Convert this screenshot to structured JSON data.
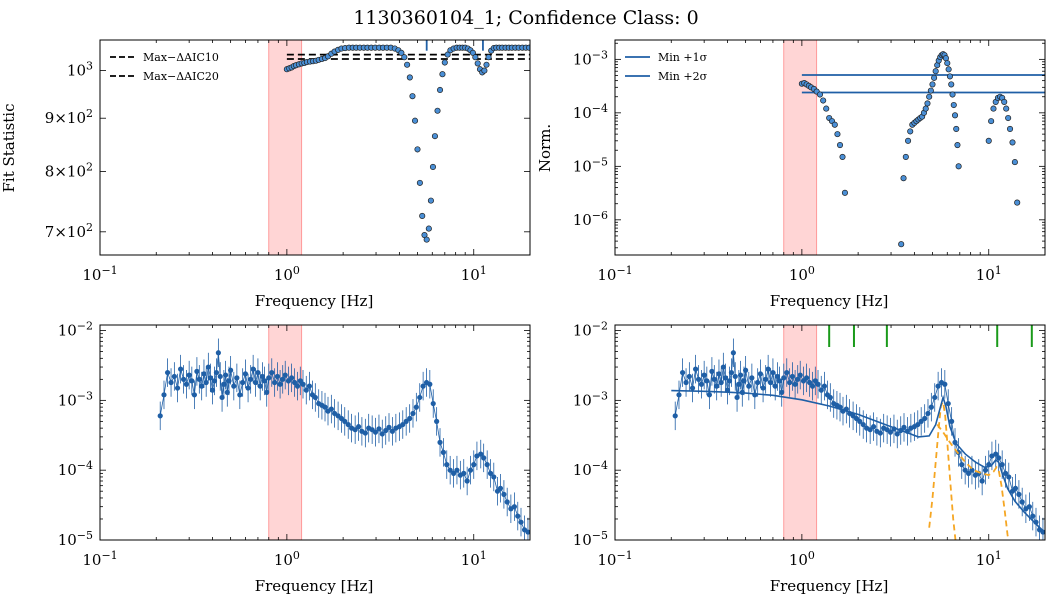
{
  "figure": {
    "suptitle": "1130360104_1; Confidence Class: 0",
    "colors": {
      "series": "#1f5fa6",
      "marker_face": "#4a8fd6",
      "marker_edge": "#222222",
      "band": "#ffb3b3",
      "model": "#1f5fa6",
      "components": "#f5a623",
      "peaks": "#1a9a1a"
    }
  },
  "chart_data": [
    {
      "id": "top-left",
      "type": "scatter",
      "title": "",
      "xlabel": "Frequency [Hz]",
      "ylabel": "Fit Statistic",
      "xscale": "log",
      "yscale": "log",
      "xlim": [
        0.1,
        20
      ],
      "ylim": [
        665,
        1070
      ],
      "xticklabels": [
        "10^-1",
        "10^0",
        "10^1"
      ],
      "yticks": [
        700,
        800,
        900,
        1000
      ],
      "yticklabels": [
        "7x10^2",
        "8x10^2",
        "9x10^2",
        "10^3"
      ],
      "shaded_band_x": [
        0.8,
        1.2
      ],
      "legend": {
        "position": "top-left",
        "entries": [
          "Max−ΔAIC10",
          "Max−ΔAIC20"
        ]
      },
      "hlines": [
        {
          "name": "Max−ΔAIC10",
          "y": 1036,
          "xmin": 1.0,
          "xmax": 20,
          "style": "dashed",
          "color": "#000000"
        },
        {
          "name": "Max−ΔAIC20",
          "y": 1026,
          "xmin": 1.0,
          "xmax": 20,
          "style": "dashed",
          "color": "#000000"
        }
      ],
      "vlines": [
        {
          "x": 5.6,
          "ymin": 1045,
          "ymax": 1070
        },
        {
          "x": 11.2,
          "ymin": 1045,
          "ymax": 1070
        }
      ],
      "points": {
        "x": [
          1.0,
          1.03,
          1.06,
          1.09,
          1.12,
          1.16,
          1.2,
          1.24,
          1.28,
          1.33,
          1.38,
          1.43,
          1.48,
          1.54,
          1.6,
          1.66,
          1.73,
          1.8,
          1.88,
          1.96,
          2.05,
          2.15,
          2.25,
          2.35,
          2.46,
          2.58,
          2.7,
          2.83,
          2.97,
          3.12,
          3.27,
          3.43,
          3.6,
          3.78,
          3.95,
          4.1,
          4.25,
          4.4,
          4.55,
          4.7,
          4.85,
          5.0,
          5.15,
          5.3,
          5.45,
          5.6,
          5.75,
          5.9,
          6.05,
          6.2,
          6.4,
          6.6,
          6.8,
          7.0,
          7.25,
          7.5,
          7.8,
          8.1,
          8.4,
          8.7,
          9.0,
          9.3,
          9.6,
          9.9,
          10.2,
          10.5,
          10.8,
          11.1,
          11.4,
          11.7,
          12.0,
          12.4,
          12.8,
          13.2,
          13.7,
          14.2,
          14.8,
          15.4,
          16.0,
          16.7,
          17.4,
          18.2,
          19.0,
          19.8
        ],
        "y": [
          1003,
          1005,
          1007,
          1010,
          1012,
          1014,
          1016,
          1017,
          1019,
          1020,
          1021,
          1022,
          1024,
          1026,
          1028,
          1032,
          1038,
          1043,
          1047,
          1050,
          1051,
          1052,
          1052,
          1052,
          1052,
          1052,
          1052,
          1052,
          1052,
          1052,
          1052,
          1052,
          1052,
          1050,
          1046,
          1040,
          1030,
          1013,
          985,
          945,
          895,
          840,
          780,
          725,
          695,
          688,
          705,
          750,
          808,
          865,
          915,
          958,
          992,
          1018,
          1036,
          1046,
          1050,
          1052,
          1052,
          1052,
          1052,
          1050,
          1046,
          1040,
          1030,
          1016,
          1003,
          996,
          1000,
          1013,
          1030,
          1045,
          1051,
          1052,
          1052,
          1052,
          1052,
          1052,
          1052,
          1052,
          1052,
          1052,
          1052,
          1052
        ]
      }
    },
    {
      "id": "top-right",
      "type": "scatter",
      "title": "",
      "xlabel": "Frequency [Hz]",
      "ylabel": "Norm.",
      "xscale": "log",
      "yscale": "log",
      "xlim": [
        0.1,
        20
      ],
      "ylim": [
        2.2e-07,
        0.0023
      ],
      "xticklabels": [
        "10^-1",
        "10^0",
        "10^1"
      ],
      "yticks": [
        1e-06,
        1e-05,
        0.0001,
        0.001
      ],
      "yticklabels": [
        "10^-6",
        "10^-5",
        "10^-4",
        "10^-3"
      ],
      "shaded_band_x": [
        0.8,
        1.2
      ],
      "legend": {
        "position": "top-left",
        "entries": [
          "Min +1σ",
          "Min +2σ"
        ]
      },
      "hlines": [
        {
          "name": "Min +1σ",
          "y": 0.00051,
          "xmin": 1.0,
          "xmax": 20,
          "style": "solid",
          "color": "#1f5fa6"
        },
        {
          "name": "Min +2σ",
          "y": 0.00024,
          "xmin": 1.0,
          "xmax": 20,
          "style": "solid",
          "color": "#1f5fa6"
        }
      ],
      "points": {
        "x": [
          1.0,
          1.03,
          1.06,
          1.09,
          1.12,
          1.16,
          1.2,
          1.25,
          1.3,
          1.35,
          1.4,
          1.45,
          1.5,
          1.55,
          1.6,
          1.65,
          1.7,
          3.4,
          3.5,
          3.6,
          3.7,
          3.8,
          3.9,
          4.0,
          4.1,
          4.2,
          4.3,
          4.4,
          4.5,
          4.6,
          4.7,
          4.8,
          4.9,
          5.0,
          5.1,
          5.2,
          5.3,
          5.4,
          5.5,
          5.6,
          5.7,
          5.8,
          5.9,
          6.0,
          6.1,
          6.2,
          6.3,
          6.4,
          6.5,
          6.6,
          6.7,
          6.8,
          6.9,
          10.0,
          10.3,
          10.6,
          10.9,
          11.2,
          11.5,
          11.8,
          12.1,
          12.4,
          12.7,
          13.0,
          13.4,
          13.8,
          14.2
        ],
        "y": [
          0.00035,
          0.00036,
          0.00034,
          0.00032,
          0.0003,
          0.00028,
          0.00025,
          0.00022,
          0.00017,
          0.00012,
          8e-05,
          7e-05,
          6e-05,
          4e-05,
          2.5e-05,
          1.5e-05,
          3.2e-06,
          3.5e-07,
          6e-06,
          1.5e-05,
          3e-05,
          4.5e-05,
          6e-05,
          6.5e-05,
          7e-05,
          7.5e-05,
          8e-05,
          8.5e-05,
          0.0001,
          0.00012,
          0.00015,
          0.0002,
          0.00026,
          0.00034,
          0.00045,
          0.0006,
          0.00078,
          0.00095,
          0.0011,
          0.0012,
          0.00125,
          0.0012,
          0.00105,
          0.00085,
          0.00065,
          0.00048,
          0.00034,
          0.00022,
          0.00014,
          9e-05,
          5e-05,
          2.5e-05,
          1e-05,
          3e-05,
          7e-05,
          0.00012,
          0.00016,
          0.00019,
          0.0002,
          0.00019,
          0.00016,
          0.00012,
          8e-05,
          5e-05,
          2.8e-05,
          1.2e-05,
          2.1e-06
        ]
      }
    },
    {
      "id": "bottom-left",
      "type": "scatter",
      "title": "",
      "xlabel": "Frequency [Hz]",
      "ylabel": "",
      "xscale": "log",
      "yscale": "log",
      "xlim": [
        0.1,
        20
      ],
      "ylim": [
        1e-05,
        0.012
      ],
      "xticklabels": [
        "10^-1",
        "10^0",
        "10^1"
      ],
      "yticks": [
        1e-05,
        0.0001,
        0.001,
        0.01
      ],
      "yticklabels": [
        "10^-5",
        "10^-4",
        "10^-3",
        "10^-2"
      ],
      "shaded_band_x": [
        0.8,
        1.2
      ],
      "series": [
        {
          "name": "",
          "color": "#1f5fa6",
          "x": [
            0.21,
            0.22,
            0.23,
            0.24,
            0.25,
            0.26,
            0.27,
            0.28,
            0.29,
            0.3,
            0.31,
            0.32,
            0.33,
            0.34,
            0.35,
            0.36,
            0.37,
            0.38,
            0.39,
            0.4,
            0.41,
            0.42,
            0.43,
            0.44,
            0.45,
            0.46,
            0.47,
            0.48,
            0.49,
            0.5,
            0.52,
            0.54,
            0.56,
            0.58,
            0.6,
            0.62,
            0.64,
            0.66,
            0.68,
            0.7,
            0.72,
            0.74,
            0.76,
            0.78,
            0.8,
            0.83,
            0.86,
            0.89,
            0.92,
            0.95,
            0.98,
            1.02,
            1.06,
            1.1,
            1.14,
            1.18,
            1.22,
            1.27,
            1.32,
            1.37,
            1.42,
            1.48,
            1.54,
            1.6,
            1.66,
            1.73,
            1.8,
            1.88,
            1.96,
            2.04,
            2.13,
            2.22,
            2.32,
            2.42,
            2.52,
            2.63,
            2.74,
            2.86,
            2.98,
            3.11,
            3.24,
            3.38,
            3.52,
            3.67,
            3.83,
            4.0,
            4.17,
            4.35,
            4.54,
            4.73,
            4.93,
            5.14,
            5.36,
            5.59,
            5.82,
            6.07,
            6.33,
            6.6,
            6.88,
            7.17,
            7.48,
            7.8,
            8.13,
            8.48,
            8.84,
            9.22,
            9.61,
            10.0,
            10.4,
            10.9,
            11.3,
            11.8,
            12.3,
            12.8,
            13.4,
            13.9,
            14.5,
            15.1,
            15.8,
            16.5,
            17.2,
            17.9,
            18.7,
            19.5
          ],
          "y": [
            0.0006,
            0.0012,
            0.0025,
            0.0018,
            0.0022,
            0.0015,
            0.0028,
            0.002,
            0.0017,
            0.0023,
            0.0019,
            0.0012,
            0.0026,
            0.002,
            0.0016,
            0.0024,
            0.0018,
            0.003,
            0.0021,
            0.0014,
            0.0019,
            0.0025,
            0.0048,
            0.0022,
            0.0011,
            0.0017,
            0.0023,
            0.0013,
            0.0019,
            0.0027,
            0.0016,
            0.0021,
            0.0012,
            0.0018,
            0.0024,
            0.0015,
            0.002,
            0.0028,
            0.0018,
            0.0025,
            0.0016,
            0.0022,
            0.0019,
            0.0013,
            0.0021,
            0.0025,
            0.0018,
            0.0022,
            0.0017,
            0.002,
            0.0023,
            0.0019,
            0.0021,
            0.0018,
            0.0016,
            0.0019,
            0.0017,
            0.0014,
            0.0016,
            0.0012,
            0.0011,
            0.0009,
            0.00085,
            0.0008,
            0.0007,
            0.00075,
            0.00065,
            0.0006,
            0.00055,
            0.0005,
            0.00045,
            0.0004,
            0.00038,
            0.00042,
            0.00036,
            0.00034,
            0.0004,
            0.00038,
            0.00035,
            0.00039,
            0.00033,
            0.00037,
            0.00041,
            0.00036,
            0.0004,
            0.00042,
            0.00045,
            0.0005,
            0.00055,
            0.00065,
            0.0008,
            0.0011,
            0.0016,
            0.0018,
            0.0017,
            0.0009,
            0.0005,
            0.00025,
            0.00018,
            0.00012,
            0.0001,
            9e-05,
            0.0001,
            8.5e-05,
            9e-05,
            7e-05,
            0.0001,
            0.00012,
            0.00016,
            0.00017,
            0.00015,
            0.00012,
            9e-05,
            8e-05,
            5e-05,
            5.5e-05,
            4.5e-05,
            3.5e-05,
            2.8e-05,
            3e-05,
            2.2e-05,
            1.8e-05,
            1.4e-05,
            1.3e-05
          ]
        }
      ]
    },
    {
      "id": "bottom-right",
      "type": "scatter",
      "title": "",
      "xlabel": "Frequency [Hz]",
      "ylabel": "",
      "xscale": "log",
      "yscale": "log",
      "xlim": [
        0.1,
        20
      ],
      "ylim": [
        1e-05,
        0.012
      ],
      "xticklabels": [
        "10^-1",
        "10^0",
        "10^1"
      ],
      "yticks": [
        1e-05,
        0.0001,
        0.001,
        0.01
      ],
      "yticklabels": [
        "10^-5",
        "10^-4",
        "10^-3",
        "10^-2"
      ],
      "shaded_band_x": [
        0.8,
        1.2
      ],
      "peak_markers_x": [
        1.4,
        1.9,
        2.85,
        11.1,
        17.0
      ],
      "series": [
        {
          "name": "",
          "color": "#1f5fa6",
          "reuse": "bottom-left"
        }
      ],
      "model": {
        "total": {
          "x": [
            0.2,
            0.3,
            0.4,
            0.5,
            0.7,
            1.0,
            1.4,
            2.0,
            2.8,
            3.5,
            4.2,
            4.8,
            5.2,
            5.5,
            5.7,
            5.9,
            6.2,
            6.7,
            7.5,
            8.5,
            9.5,
            10.3,
            10.9,
            11.3,
            11.8,
            12.6,
            13.8,
            15.5,
            17.5,
            19.8
          ],
          "y": [
            0.00138,
            0.00135,
            0.00131,
            0.00127,
            0.00118,
            0.00102,
            0.00083,
            0.00063,
            0.00045,
            0.00036,
            0.0003,
            0.00031,
            0.00045,
            0.00078,
            0.0011,
            0.00082,
            0.00042,
            0.00024,
            0.00017,
            0.00013,
            0.00011,
            0.000115,
            0.00014,
            0.00013,
            9e-05,
            5.5e-05,
            3.6e-05,
            2.5e-05,
            1.8e-05,
            1.3e-05
          ]
        },
        "components": [
          {
            "x": [
              4.8,
              5.0,
              5.2,
              5.4,
              5.55,
              5.7,
              5.85,
              6.0,
              6.2,
              6.45,
              6.7
            ],
            "y": [
              1.5e-05,
              4e-05,
              0.00013,
              0.0004,
              0.00085,
              0.00095,
              0.0006,
              0.00025,
              8e-05,
              2e-05,
              8e-06
            ]
          },
          {
            "x": [
              5.3,
              5.7,
              6.2,
              6.8,
              7.5,
              8.3,
              9.2,
              10.0,
              10.6,
              11.0,
              11.3,
              11.7,
              12.2,
              12.6,
              13.0
            ],
            "y": [
              0.00045,
              0.00035,
              0.00025,
              0.00018,
              0.00013,
              0.0001,
              9e-05,
              8.5e-05,
              9.5e-05,
              0.00011,
              0.0001,
              6e-05,
              2.5e-05,
              1.2e-05,
              7e-06
            ]
          }
        ]
      }
    }
  ]
}
